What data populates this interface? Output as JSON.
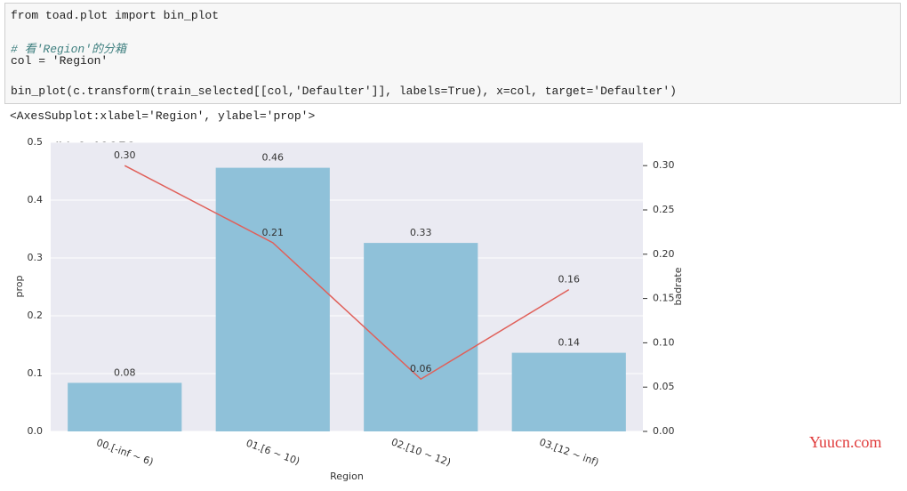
{
  "code_cell": {
    "lines": [
      "from toad.plot import bin_plot",
      "# 看'Region'的分箱",
      "col = 'Region'",
      "bin_plot(c.transform(train_selected[[col,'Defaulter']], labels=True), x=col, target='Defaulter')"
    ]
  },
  "output": "<AxesSubplot:xlabel='Region', ylabel='prop'>",
  "watermark": "Yuucn.com",
  "chart_data": {
    "type": "bar",
    "annotation": "IV: 0.40952",
    "xlabel": "Region",
    "ylabel": "prop",
    "y2label": "badrate",
    "categories": [
      "00.[-inf ~ 6)",
      "01.[6 ~ 10)",
      "02.[10 ~ 12)",
      "03.[12 ~ inf)"
    ],
    "series": [
      {
        "type": "bar",
        "color": "#8fc1d9",
        "values": [
          0.084,
          0.456,
          0.326,
          0.136
        ],
        "value_labels": [
          "0.08",
          "0.46",
          "0.33",
          "0.14"
        ]
      },
      {
        "type": "line",
        "axis": "y2",
        "color": "#e0605a",
        "values": [
          0.3,
          0.213,
          0.059,
          0.16
        ],
        "value_labels": [
          "0.30",
          "0.21",
          "0.06",
          "0.16"
        ]
      }
    ],
    "ylim": [
      0,
      0.5
    ],
    "yticks": [
      {
        "value": 0,
        "label": "0.0"
      },
      0.1,
      0.2,
      0.3,
      0.4,
      0.5
    ],
    "y2lim": [
      0,
      0.3263
    ],
    "y2ticks": [
      {
        "value": 0,
        "label": "0.00"
      },
      0.05,
      {
        "value": 0.1,
        "label": "0.10"
      },
      0.15,
      {
        "value": 0.2,
        "label": "0.20"
      },
      0.25,
      {
        "value": 0.3,
        "label": "0.30"
      }
    ],
    "grid": true
  }
}
